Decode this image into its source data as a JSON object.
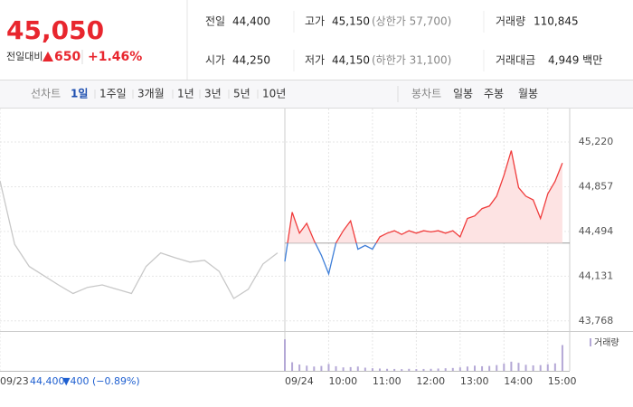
{
  "header": {
    "price": "45,050",
    "change_label": "전일대비",
    "change": "650",
    "change_pct": "+1.46%"
  },
  "stats": [
    [
      {
        "label": "전일",
        "value": "44,400"
      },
      {
        "label": "고가",
        "value": "45,150",
        "note": "(상한가 57,700)"
      },
      {
        "label": "거래량",
        "value": "110,845"
      }
    ],
    [
      {
        "label": "시가",
        "value": "44,250"
      },
      {
        "label": "저가",
        "value": "44,150",
        "note": "(하한가 31,100)"
      },
      {
        "label": "거래대금",
        "value": "4,949 백만"
      }
    ]
  ],
  "tabs": {
    "line_label": "선차트",
    "line": [
      "1일",
      "1주일",
      "3개월",
      "1년",
      "3년",
      "5년",
      "10년"
    ],
    "candle_label": "봉차트",
    "candle": [
      "일봉",
      "주봉",
      "월봉"
    ]
  },
  "chart_data": {
    "type": "line",
    "baseline": 44400,
    "xlim": [
      -390,
      390
    ],
    "ylim": [
      43715,
      45455
    ],
    "yticks": [
      {
        "value": 45220,
        "label": "45,220"
      },
      {
        "value": 44857,
        "label": "44,857"
      },
      {
        "value": 44494,
        "label": "44,494"
      },
      {
        "value": 44131,
        "label": "44,131"
      },
      {
        "value": 43768,
        "label": "43,768"
      }
    ],
    "xticks": [
      {
        "value": -390,
        "label": "09/23"
      },
      {
        "value": 0,
        "label": "09/24"
      },
      {
        "value": 60,
        "label": "10:00"
      },
      {
        "value": 120,
        "label": "11:00"
      },
      {
        "value": 180,
        "label": "12:00"
      },
      {
        "value": 240,
        "label": "13:00"
      },
      {
        "value": 300,
        "label": "14:00"
      },
      {
        "value": 360,
        "label": "15:00"
      }
    ],
    "grid": true,
    "series": [
      {
        "color": "#c8c8c8",
        "x": [
          -390,
          -370,
          -350,
          -330,
          -310,
          -290,
          -270,
          -250,
          -230,
          -210,
          -190,
          -170,
          -150,
          -130,
          -110,
          -90,
          -70,
          -50,
          -30,
          -10
        ],
        "values": [
          44905,
          44390,
          44210,
          44135,
          44060,
          43990,
          44040,
          44060,
          44025,
          43990,
          44210,
          44320,
          44280,
          44245,
          44260,
          44170,
          43950,
          44025,
          44230,
          44320
        ]
      },
      {
        "color": "#f03c3c",
        "color_below": "#3f7fd8",
        "fill": "#fde3e3",
        "x": [
          0,
          10,
          20,
          30,
          40,
          50,
          60,
          70,
          80,
          90,
          100,
          110,
          120,
          130,
          140,
          150,
          160,
          170,
          180,
          190,
          200,
          210,
          220,
          230,
          240,
          250,
          260,
          270,
          280,
          290,
          300,
          310,
          320,
          330,
          340,
          350,
          360,
          370,
          380
        ],
        "values": [
          44250,
          44650,
          44480,
          44560,
          44420,
          44300,
          44150,
          44400,
          44500,
          44580,
          44350,
          44380,
          44350,
          44450,
          44480,
          44500,
          44470,
          44500,
          44480,
          44500,
          44490,
          44500,
          44480,
          44500,
          44450,
          44600,
          44620,
          44680,
          44700,
          44780,
          44950,
          45150,
          44850,
          44780,
          44750,
          44600,
          44800,
          44900,
          45050
        ]
      }
    ],
    "volume": {
      "name": "거래량",
      "color": "#b4a8d6",
      "ylim": [
        0,
        12000
      ],
      "values": [
        11000,
        3000,
        2200,
        1800,
        1500,
        1700,
        2400,
        1600,
        1200,
        1300,
        1500,
        1100,
        900,
        800,
        700,
        650,
        600,
        700,
        600,
        650,
        700,
        800,
        900,
        1000,
        1200,
        1500,
        1800,
        1600,
        1700,
        2000,
        2500,
        3200,
        2800,
        2100,
        1900,
        2000,
        2300,
        2600,
        9000
      ]
    },
    "prev_close": "44,400",
    "prev_change": "▼400 (−0.89%)"
  }
}
